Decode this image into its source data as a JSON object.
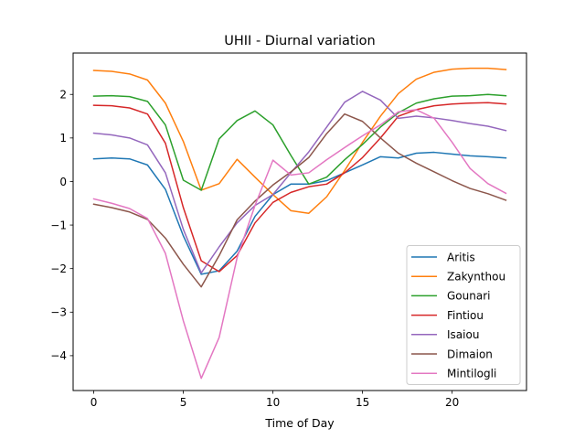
{
  "chart_data": {
    "type": "line",
    "title": "UHII - Diurnal variation",
    "xlabel": "Time of Day",
    "ylabel": "",
    "xlim": [
      -1.15,
      24.15
    ],
    "ylim": [
      -4.8,
      2.95
    ],
    "xticks": [
      0,
      5,
      10,
      15,
      20
    ],
    "yticks": [
      -4,
      -3,
      -2,
      -1,
      0,
      1,
      2
    ],
    "grid": false,
    "legend_position": "lower right",
    "x": [
      0,
      1,
      2,
      3,
      4,
      5,
      6,
      7,
      8,
      9,
      10,
      11,
      12,
      13,
      14,
      15,
      16,
      17,
      18,
      19,
      20,
      21,
      22,
      23
    ],
    "series": [
      {
        "name": "Aritis",
        "color": "#1f77b4",
        "values": [
          0.52,
          0.54,
          0.52,
          0.38,
          -0.18,
          -1.25,
          -2.13,
          -2.05,
          -1.6,
          -0.8,
          -0.3,
          -0.06,
          -0.06,
          0.02,
          0.2,
          0.38,
          0.57,
          0.54,
          0.65,
          0.67,
          0.63,
          0.59,
          0.57,
          0.54
        ]
      },
      {
        "name": "Zakynthou",
        "color": "#ff7f0e",
        "values": [
          2.55,
          2.53,
          2.47,
          2.33,
          1.8,
          0.92,
          -0.2,
          -0.05,
          0.51,
          0.1,
          -0.3,
          -0.67,
          -0.73,
          -0.35,
          0.25,
          0.9,
          1.5,
          2.02,
          2.35,
          2.51,
          2.58,
          2.6,
          2.6,
          2.57
        ]
      },
      {
        "name": "Gounari",
        "color": "#2ca02c",
        "values": [
          1.96,
          1.97,
          1.95,
          1.84,
          1.3,
          0.03,
          -0.2,
          0.98,
          1.4,
          1.62,
          1.3,
          0.6,
          -0.06,
          0.1,
          0.5,
          0.85,
          1.25,
          1.58,
          1.8,
          1.9,
          1.96,
          1.97,
          2.0,
          1.97
        ]
      },
      {
        "name": "Fintiou",
        "color": "#d62728",
        "values": [
          1.75,
          1.74,
          1.69,
          1.55,
          0.88,
          -0.6,
          -1.82,
          -2.07,
          -1.7,
          -0.95,
          -0.48,
          -0.25,
          -0.12,
          -0.06,
          0.2,
          0.55,
          1.0,
          1.5,
          1.65,
          1.74,
          1.78,
          1.8,
          1.81,
          1.78
        ]
      },
      {
        "name": "Isaiou",
        "color": "#9467bd",
        "values": [
          1.11,
          1.07,
          1.0,
          0.84,
          0.2,
          -1.1,
          -2.1,
          -1.5,
          -0.95,
          -0.55,
          -0.3,
          0.2,
          0.68,
          1.25,
          1.82,
          2.07,
          1.87,
          1.45,
          1.5,
          1.46,
          1.4,
          1.33,
          1.27,
          1.17
        ]
      },
      {
        "name": "Dimaion",
        "color": "#8c564b",
        "values": [
          -0.52,
          -0.6,
          -0.7,
          -0.87,
          -1.3,
          -1.9,
          -2.42,
          -1.7,
          -0.88,
          -0.45,
          -0.08,
          0.22,
          0.55,
          1.1,
          1.55,
          1.38,
          1.0,
          0.65,
          0.42,
          0.22,
          0.02,
          -0.16,
          -0.28,
          -0.43
        ]
      },
      {
        "name": "Mintilogli",
        "color": "#e377c2",
        "values": [
          -0.4,
          -0.5,
          -0.62,
          -0.85,
          -1.65,
          -3.2,
          -4.52,
          -3.58,
          -1.75,
          -0.55,
          0.49,
          0.15,
          0.2,
          0.5,
          0.78,
          1.05,
          1.3,
          1.6,
          1.65,
          1.45,
          0.9,
          0.3,
          -0.05,
          -0.27
        ]
      }
    ]
  }
}
